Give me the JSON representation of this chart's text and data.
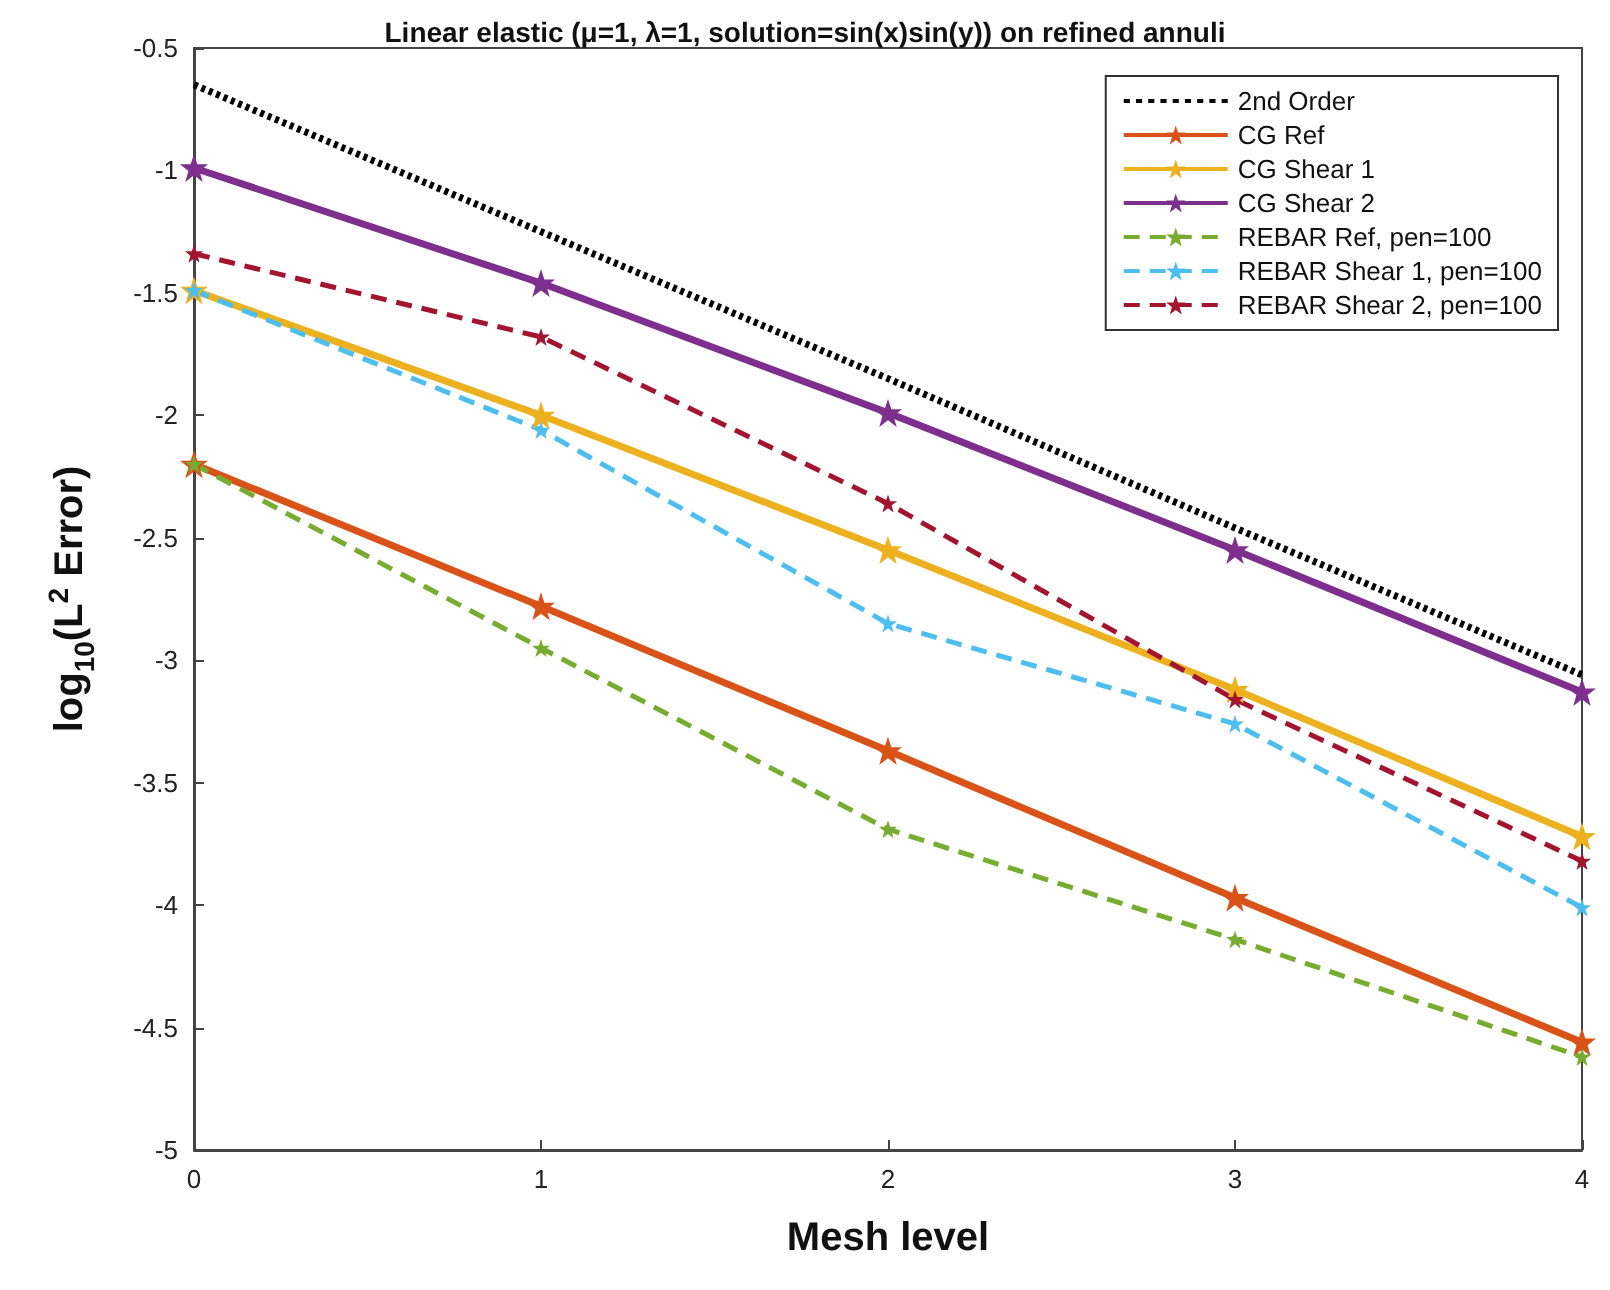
{
  "chart_data": {
    "type": "line",
    "title": "Linear elastic (μ=1, λ=1, solution=sin(x)sin(y)) on refined annuli",
    "xlabel": "Mesh level",
    "ylabel": "log$_{10}$(L$^{2}$ Error)",
    "x": [
      0,
      1,
      2,
      3,
      4
    ],
    "series": [
      {
        "name": "2nd Order",
        "color": "#000000",
        "line_style": "dotted",
        "marker": "none",
        "values": [
          -0.65,
          -1.25,
          -1.85,
          -2.46,
          -3.06
        ]
      },
      {
        "name": "CG Ref",
        "color": "#d95319",
        "line_style": "solid",
        "marker": "star",
        "values": [
          -2.2,
          -2.78,
          -3.37,
          -3.97,
          -4.56
        ]
      },
      {
        "name": "CG Shear 1",
        "color": "#edb120",
        "line_style": "solid",
        "marker": "star",
        "values": [
          -1.49,
          -2.0,
          -2.55,
          -3.12,
          -3.72
        ]
      },
      {
        "name": "CG Shear 2",
        "color": "#7e2f8e",
        "line_style": "solid",
        "marker": "star",
        "values": [
          -0.99,
          -1.46,
          -1.99,
          -2.55,
          -3.13
        ]
      },
      {
        "name": "REBAR Ref, pen=100",
        "color": "#77ac30",
        "line_style": "dashed",
        "marker": "star",
        "values": [
          -2.2,
          -2.95,
          -3.69,
          -4.14,
          -4.62
        ]
      },
      {
        "name": "REBAR Shear 1, pen=100",
        "color": "#4dbeee",
        "line_style": "dashed",
        "marker": "star",
        "values": [
          -1.49,
          -2.06,
          -2.85,
          -3.26,
          -4.01
        ]
      },
      {
        "name": "REBAR Shear 2, pen=100",
        "color": "#a2142f",
        "line_style": "dashed",
        "marker": "star",
        "values": [
          -1.34,
          -1.68,
          -2.36,
          -3.16,
          -3.82
        ]
      }
    ],
    "xlim": [
      0,
      4
    ],
    "xticks": [
      0,
      1,
      2,
      3,
      4
    ],
    "ylim": [
      -5,
      -0.5
    ],
    "yticks": [
      -5,
      -4.5,
      -4,
      -3.5,
      -3,
      -2.5,
      -2,
      -1.5,
      -1,
      -0.5
    ],
    "grid": false,
    "legend": "top right"
  }
}
